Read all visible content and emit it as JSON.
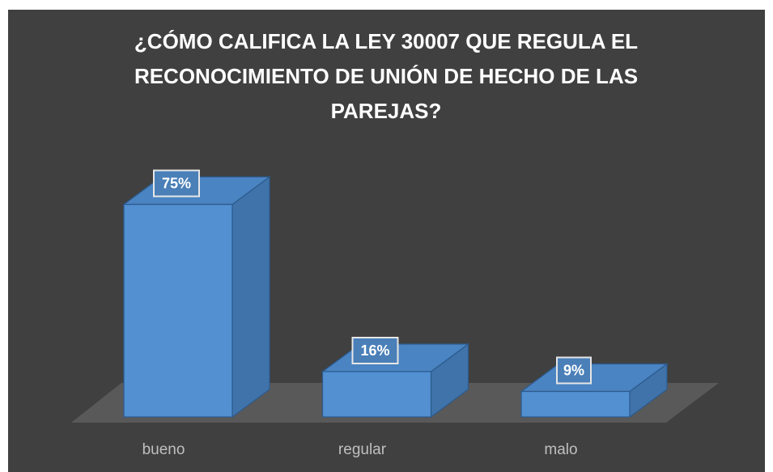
{
  "chart_data": {
    "type": "bar3d",
    "title": "¿CÓMO CALIFICA LA LEY 30007 QUE REGULA EL RECONOCIMIENTO DE UNIÓN DE HECHO DE LAS PAREJAS?",
    "categories": [
      "bueno",
      "regular",
      "malo"
    ],
    "values": [
      75,
      16,
      9
    ],
    "value_labels": [
      "75%",
      "16%",
      "9%"
    ],
    "color": "#5290d2"
  }
}
